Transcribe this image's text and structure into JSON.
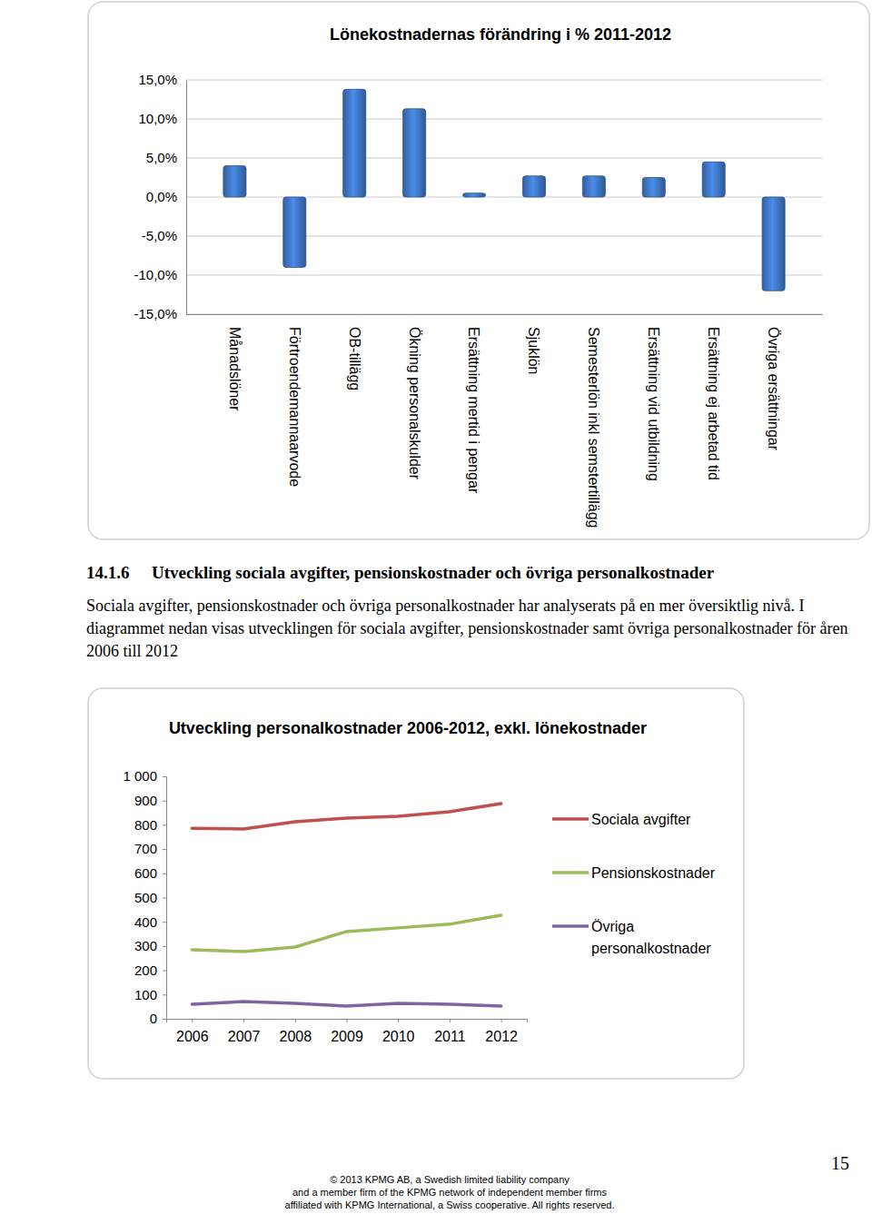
{
  "chart_data": [
    {
      "type": "bar",
      "title": "Lönekostnadernas förändring i % 2011-2012",
      "categories": [
        "Månadslöner",
        "Förtroendemannaarvode",
        "OB-tillägg",
        "Ökning personalskulder",
        "Ersättning mertid i pengar",
        "Sjuklön",
        "Semesterlön inkl semstertillägg",
        "Ersättning vid utbildning",
        "Ersättning ej arbetad tid",
        "Övriga ersättningar"
      ],
      "values": [
        4.0,
        -9.0,
        13.8,
        11.3,
        0.5,
        2.7,
        2.7,
        2.5,
        4.5,
        -12.0
      ],
      "color": "#3f76c4",
      "ylim": [
        -15,
        15
      ],
      "yticks": [
        {
          "value": 15,
          "label": "15,0%"
        },
        {
          "value": 10,
          "label": "10,0%"
        },
        {
          "value": 5,
          "label": "5,0%"
        },
        {
          "value": 0,
          "label": "0,0%"
        },
        {
          "value": -5,
          "label": "-5,0%"
        },
        {
          "value": -10,
          "label": "-10,0%"
        },
        {
          "value": -15,
          "label": "-15,0%"
        }
      ],
      "grid": true
    },
    {
      "type": "line",
      "title": "Utveckling personalkostnader 2006-2012, exkl. lönekostnader",
      "categories": [
        "2006",
        "2007",
        "2008",
        "2009",
        "2010",
        "2011",
        "2012"
      ],
      "series": [
        {
          "name": "Sociala avgifter",
          "color": "#c0504d",
          "values": [
            786,
            783,
            813,
            828,
            835,
            854,
            888
          ]
        },
        {
          "name": "Pensionskostnader",
          "color": "#9bbb59",
          "values": [
            285,
            277,
            296,
            360,
            375,
            390,
            427
          ]
        },
        {
          "name": "Övriga personalkostnader",
          "color": "#8064a2",
          "values": [
            60,
            71,
            64,
            52,
            64,
            60,
            52
          ]
        }
      ],
      "ylim": [
        0,
        1000
      ],
      "yticks": [
        0,
        100,
        200,
        300,
        400,
        500,
        600,
        700,
        800,
        900,
        {
          "value": 1000,
          "label": "1 000"
        }
      ],
      "grid": false,
      "legend": "right"
    }
  ],
  "text": {
    "section_number": "14.1.6",
    "heading": "Utveckling sociala avgifter, pensionskostnader och övriga personalkostnader",
    "paragraph": "Sociala avgifter, pensionskostnader och övriga personalkostnader har analyserats på en mer översiktlig nivå. I diagrammet nedan visas utvecklingen för sociala avgifter, pensionskostnader samt övriga personalkostnader för åren 2006 till 2012",
    "footer": [
      "© 2013 KPMG AB, a Swedish limited liability company",
      "and a member firm of the KPMG network of independent member firms",
      "affiliated with KPMG International, a Swiss cooperative. All rights reserved."
    ],
    "page_number": 15
  }
}
